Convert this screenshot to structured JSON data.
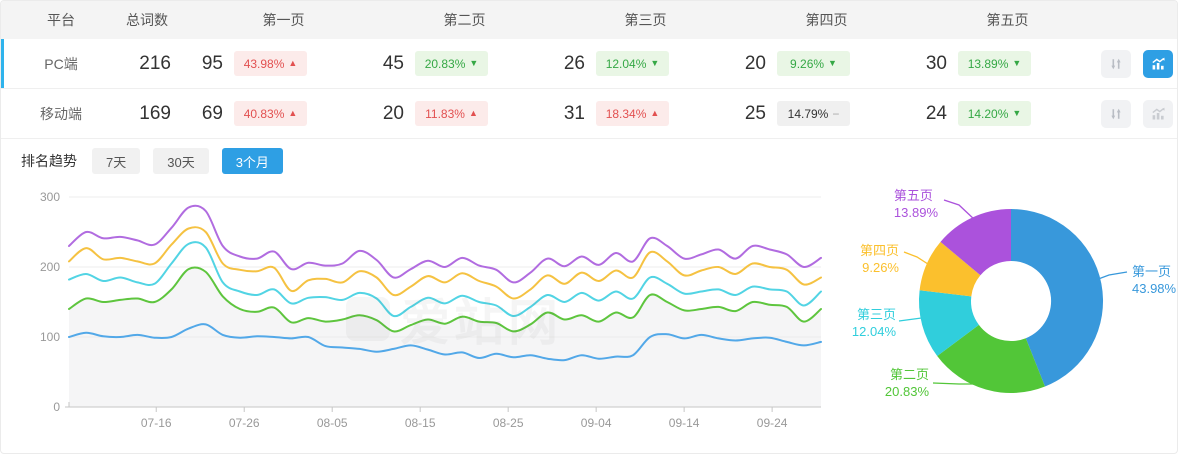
{
  "colors": {
    "accent_blue": "#2e9fe4",
    "row_accent": "#2fb3ec",
    "up_red": "#e25050",
    "down_green": "#35a845"
  },
  "table": {
    "headers": [
      "平台",
      "总词数",
      "第一页",
      "第二页",
      "第三页",
      "第四页",
      "第五页"
    ],
    "rows": [
      {
        "platform": "PC端",
        "total": "216",
        "selected": true,
        "chart_active": true,
        "pages": [
          {
            "count": "95",
            "pct": "43.98%",
            "trend": "up"
          },
          {
            "count": "45",
            "pct": "20.83%",
            "trend": "down"
          },
          {
            "count": "26",
            "pct": "12.04%",
            "trend": "down"
          },
          {
            "count": "20",
            "pct": "9.26%",
            "trend": "down"
          },
          {
            "count": "30",
            "pct": "13.89%",
            "trend": "down"
          }
        ]
      },
      {
        "platform": "移动端",
        "total": "169",
        "selected": false,
        "chart_active": false,
        "pages": [
          {
            "count": "69",
            "pct": "40.83%",
            "trend": "up"
          },
          {
            "count": "20",
            "pct": "11.83%",
            "trend": "up"
          },
          {
            "count": "31",
            "pct": "18.34%",
            "trend": "up"
          },
          {
            "count": "25",
            "pct": "14.79%",
            "trend": "flat"
          },
          {
            "count": "24",
            "pct": "14.20%",
            "trend": "down"
          }
        ]
      }
    ]
  },
  "trend": {
    "title": "排名趋势",
    "tabs": [
      {
        "label": "7天",
        "active": false
      },
      {
        "label": "30天",
        "active": false
      },
      {
        "label": "3个月",
        "active": true
      }
    ]
  },
  "watermark": "爱站网",
  "chart_data": [
    {
      "type": "line",
      "title": "排名趋势（3个月）",
      "x_ticks": [
        "07-16",
        "07-26",
        "08-05",
        "08-15",
        "08-25",
        "09-04",
        "09-14",
        "09-24"
      ],
      "y_ticks": [
        0,
        100,
        200,
        300
      ],
      "ylim": [
        0,
        300
      ],
      "grid": true,
      "legend": "none",
      "series": [
        {
          "name": "第一页",
          "color": "#52a8e8",
          "area": false,
          "values": [
            100,
            106,
            101,
            100,
            103,
            99,
            100,
            112,
            118,
            103,
            99,
            101,
            100,
            98,
            100,
            87,
            85,
            83,
            79,
            83,
            88,
            82,
            75,
            78,
            70,
            76,
            71,
            74,
            69,
            67,
            74,
            69,
            72,
            74,
            100,
            104,
            98,
            103,
            98,
            95,
            98,
            99,
            93,
            88,
            93
          ]
        },
        {
          "name": "第二页",
          "color": "#5ec53e",
          "area": true,
          "values": [
            140,
            155,
            150,
            153,
            155,
            150,
            168,
            197,
            193,
            158,
            140,
            136,
            142,
            121,
            127,
            122,
            125,
            131,
            124,
            108,
            117,
            125,
            119,
            129,
            122,
            120,
            108,
            118,
            135,
            125,
            131,
            122,
            135,
            128,
            160,
            150,
            138,
            140,
            143,
            137,
            150,
            146,
            143,
            122,
            140
          ]
        },
        {
          "name": "第三页",
          "color": "#52d4e4",
          "area": false,
          "values": [
            182,
            190,
            180,
            185,
            178,
            176,
            205,
            233,
            228,
            178,
            165,
            160,
            168,
            148,
            156,
            157,
            153,
            163,
            155,
            130,
            143,
            156,
            148,
            159,
            150,
            145,
            130,
            143,
            160,
            150,
            163,
            152,
            165,
            155,
            185,
            176,
            162,
            165,
            168,
            160,
            172,
            168,
            165,
            145,
            165
          ]
        },
        {
          "name": "第四页",
          "color": "#f5c242",
          "area": false,
          "values": [
            208,
            227,
            211,
            213,
            208,
            205,
            232,
            255,
            250,
            205,
            196,
            194,
            199,
            166,
            181,
            183,
            178,
            194,
            185,
            160,
            172,
            187,
            178,
            191,
            180,
            172,
            155,
            168,
            188,
            176,
            192,
            180,
            195,
            185,
            221,
            208,
            188,
            195,
            200,
            190,
            205,
            200,
            196,
            175,
            185
          ]
        },
        {
          "name": "第五页",
          "color": "#b16ce0",
          "area": false,
          "values": [
            230,
            250,
            241,
            243,
            238,
            232,
            256,
            285,
            280,
            230,
            215,
            212,
            222,
            197,
            206,
            202,
            205,
            223,
            210,
            185,
            197,
            209,
            200,
            213,
            202,
            196,
            178,
            192,
            212,
            201,
            215,
            203,
            220,
            208,
            241,
            230,
            212,
            218,
            225,
            212,
            230,
            225,
            218,
            200,
            213
          ]
        }
      ]
    },
    {
      "type": "pie",
      "subtype": "donut",
      "start_angle": "top",
      "direction": "clockwise",
      "segments": [
        {
          "label": "第一页",
          "value": 43.98,
          "pct_label": "43.98%",
          "color": "#3898db"
        },
        {
          "label": "第二页",
          "value": 20.83,
          "pct_label": "20.83%",
          "color": "#52c638"
        },
        {
          "label": "第三页",
          "value": 12.04,
          "pct_label": "12.04%",
          "color": "#30cedc"
        },
        {
          "label": "第四页",
          "value": 9.26,
          "pct_label": "9.26%",
          "color": "#fbc02d"
        },
        {
          "label": "第五页",
          "value": 13.89,
          "pct_label": "13.89%",
          "color": "#ab52dc"
        }
      ]
    }
  ]
}
